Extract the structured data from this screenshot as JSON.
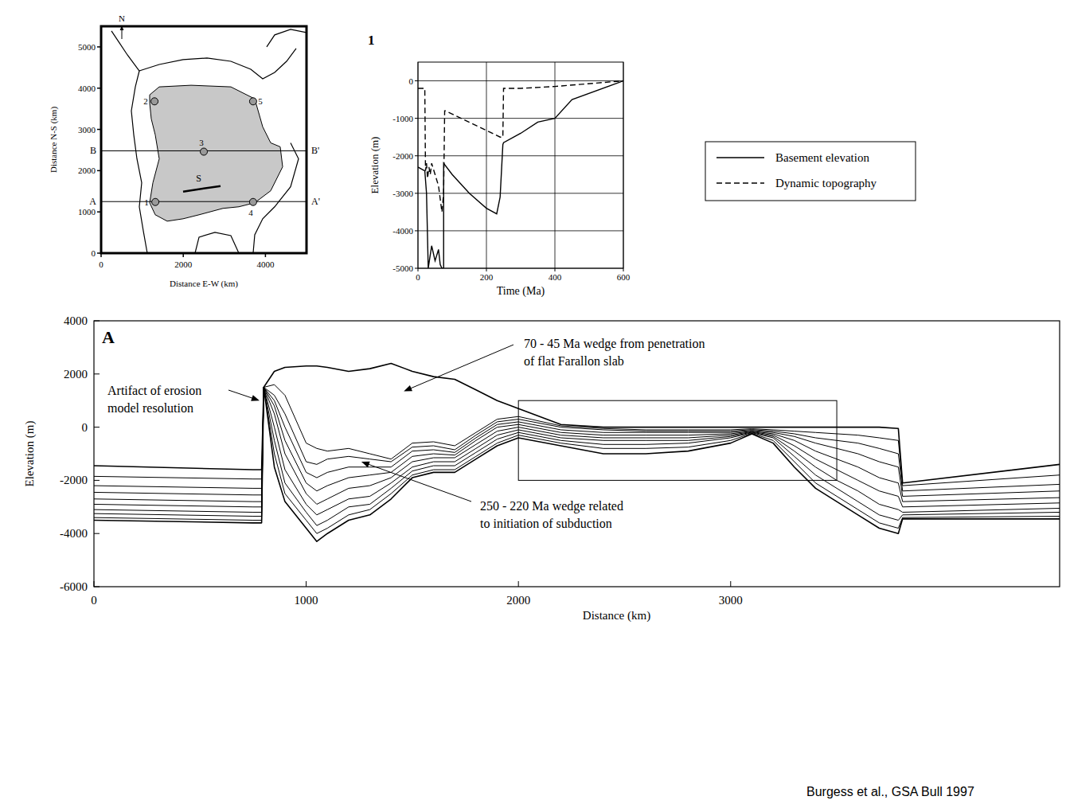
{
  "chart_data": [
    {
      "type": "map",
      "xlim": [
        0,
        5000
      ],
      "ylim": [
        0,
        5500
      ],
      "xticks": [
        0,
        2000,
        4000
      ],
      "yticks": [
        0,
        1000,
        2000,
        3000,
        4000,
        5000
      ],
      "xlabel": "Distance E-W (km)",
      "ylabel": "Distance N-S (km)",
      "north_label": "N",
      "region": {
        "x": [
          1182,
          1415,
          2190,
          3159,
          3740,
          3934,
          4128,
          4360,
          4419,
          4128,
          3740,
          3353,
          2965,
          2384,
          1996,
          1609,
          1318,
          1182,
          1260,
          1415,
          1318,
          1221,
          1182
        ],
        "y": [
          3837,
          4031,
          4070,
          4031,
          3740,
          3062,
          2674,
          2578,
          2093,
          1512,
          1221,
          1124,
          1085,
          930,
          833,
          775,
          930,
          1221,
          1705,
          2287,
          2868,
          3256,
          3643
        ]
      },
      "coastlines": [
        {
          "x": [
            1124,
            1027,
            930,
            988,
            872,
            795,
            736,
            833,
            930,
            640,
            446,
            252
          ],
          "y": [
            0,
            543,
            1124,
            1705,
            2287,
            2868,
            3450,
            4031,
            4419,
            4806,
            5097,
            5388
          ]
        },
        {
          "x": [
            930,
            1415,
            1996,
            2578,
            3159,
            3643,
            3934,
            4225,
            4515,
            4748
          ],
          "y": [
            4419,
            4574,
            4690,
            4729,
            4651,
            4457,
            4225,
            4380,
            4651,
            4961
          ]
        },
        {
          "x": [
            4031,
            4225,
            4612,
            5000
          ],
          "y": [
            5000,
            5291,
            5426,
            5349
          ]
        },
        {
          "x": [
            4612,
            4806,
            4612,
            4225,
            3934,
            3740,
            3701
          ],
          "y": [
            2674,
            2287,
            1609,
            1124,
            833,
            446,
            0
          ]
        },
        {
          "x": [
            2287,
            2384,
            2771,
            3159,
            3353
          ],
          "y": [
            0,
            388,
            504,
            426,
            0
          ]
        }
      ],
      "sections": [
        {
          "start_label": "A",
          "end_label": "A'",
          "y": 1250
        },
        {
          "start_label": "B",
          "end_label": "B'",
          "y": 2480
        }
      ],
      "points": [
        {
          "label": "1",
          "x": 1320,
          "y": 1240
        },
        {
          "label": "2",
          "x": 1300,
          "y": 3680
        },
        {
          "label": "3",
          "x": 2500,
          "y": 2460
        },
        {
          "label": "4",
          "x": 3700,
          "y": 1240
        },
        {
          "label": "5",
          "x": 3700,
          "y": 3680
        }
      ],
      "segment": {
        "label": "S",
        "x": [
          1996,
          2907
        ],
        "y": [
          1492,
          1628
        ]
      }
    },
    {
      "type": "line",
      "title": "1",
      "xlabel": "Time (Ma)",
      "ylabel": "Elevation (m)",
      "xlim": [
        0,
        600
      ],
      "ylim": [
        -5000,
        500
      ],
      "xticks": [
        0,
        200,
        400,
        600
      ],
      "yticks": [
        -5000,
        -4000,
        -3000,
        -2000,
        -1000,
        0
      ],
      "grid": true,
      "legend": "right",
      "series": [
        {
          "name": "Basement elevation",
          "color": "#000000",
          "line_style": "solid",
          "x": [
            0,
            20,
            25,
            30,
            35,
            40,
            50,
            60,
            65,
            70,
            75,
            75,
            100,
            150,
            200,
            230,
            240,
            248,
            250,
            300,
            350,
            400,
            450,
            600
          ],
          "values": [
            -2300,
            -2400,
            -3000,
            -5000,
            -4700,
            -4400,
            -4800,
            -4500,
            -4900,
            -5000,
            -5000,
            -2200,
            -2500,
            -3000,
            -3400,
            -3550,
            -3100,
            -1700,
            -1650,
            -1400,
            -1100,
            -1000,
            -500,
            0
          ]
        },
        {
          "name": "Dynamic topography",
          "color": "#000000",
          "line_style": "dashed",
          "x": [
            0,
            20,
            22,
            25,
            28,
            32,
            36,
            40,
            50,
            60,
            70,
            75,
            78,
            80,
            240,
            248,
            250,
            300,
            400,
            600
          ],
          "values": [
            -200,
            -200,
            -2400,
            -2200,
            -2600,
            -2300,
            -2500,
            -2200,
            -2500,
            -2800,
            -3500,
            -3000,
            -800,
            -800,
            -1500,
            -1500,
            -200,
            -200,
            -150,
            0
          ]
        }
      ]
    },
    {
      "type": "section",
      "panel": "A",
      "xlabel": "Distance (km)",
      "ylabel": "Elevation (m)",
      "xlim": [
        0,
        4550
      ],
      "ylim": [
        -6000,
        4000
      ],
      "xticks": [
        0,
        1000,
        2000,
        3000
      ],
      "yticks": [
        -6000,
        -4000,
        -2000,
        0,
        2000,
        4000
      ],
      "x": [
        0,
        750,
        790,
        800,
        850,
        900,
        1000,
        1050,
        1100,
        1200,
        1300,
        1400,
        1500,
        1600,
        1700,
        1800,
        1900,
        2000,
        2200,
        2400,
        2600,
        2800,
        3000,
        3100,
        3200,
        3300,
        3400,
        3500,
        3600,
        3700,
        3790,
        3810,
        4550
      ],
      "series": [
        {
          "color": "#000000",
          "values": [
            -3500,
            -3600,
            -3600,
            1500,
            -1500,
            -2800,
            -3800,
            -4300,
            -4000,
            -3500,
            -3300,
            -2700,
            -1900,
            -1700,
            -1700,
            -1200,
            -700,
            -400,
            -700,
            -1000,
            -1000,
            -900,
            -600,
            -250,
            -600,
            -1500,
            -2300,
            -2800,
            -3300,
            -3800,
            -4000,
            -3450,
            -3450
          ]
        },
        {
          "color": "#000000",
          "values": [
            -3400,
            -3500,
            -3500,
            1500,
            -1000,
            -2500,
            -3500,
            -4000,
            -3800,
            -3300,
            -3100,
            -2500,
            -1800,
            -1600,
            -1600,
            -1100,
            -600,
            -300,
            -600,
            -800,
            -800,
            -750,
            -500,
            -230,
            -500,
            -1300,
            -2100,
            -2600,
            -3100,
            -3600,
            -3800,
            -3400,
            -3350
          ]
        },
        {
          "color": "#000000",
          "values": [
            -3250,
            -3350,
            -3350,
            1500,
            -500,
            -2100,
            -3200,
            -3700,
            -3500,
            -3000,
            -2900,
            -2300,
            -1650,
            -1450,
            -1450,
            -950,
            -450,
            -200,
            -500,
            -650,
            -650,
            -600,
            -400,
            -210,
            -400,
            -1100,
            -1800,
            -2300,
            -2800,
            -3300,
            -3500,
            -3300,
            -3200
          ]
        },
        {
          "color": "#000000",
          "values": [
            -3100,
            -3200,
            -3200,
            1500,
            0,
            -1600,
            -2900,
            -3300,
            -3100,
            -2700,
            -2600,
            -2100,
            -1500,
            -1300,
            -1300,
            -800,
            -300,
            -100,
            -400,
            -500,
            -500,
            -500,
            -350,
            -190,
            -350,
            -900,
            -1500,
            -2000,
            -2400,
            -2900,
            -3100,
            -3200,
            -3050
          ]
        },
        {
          "color": "#000000",
          "values": [
            -2900,
            -3000,
            -3000,
            1500,
            500,
            -1000,
            -2500,
            -2900,
            -2700,
            -2300,
            -2200,
            -1900,
            -1300,
            -1150,
            -1150,
            -650,
            -150,
            0,
            -300,
            -400,
            -400,
            -400,
            -300,
            -170,
            -300,
            -700,
            -1200,
            -1600,
            -2000,
            -2400,
            -2600,
            -3000,
            -2850
          ]
        },
        {
          "color": "#000000",
          "values": [
            -2700,
            -2800,
            -2800,
            1500,
            800,
            -500,
            -2100,
            -2400,
            -2200,
            -1900,
            -1800,
            -1700,
            -1100,
            -1000,
            -1050,
            -500,
            0,
            100,
            -200,
            -300,
            -300,
            -300,
            -250,
            -150,
            -250,
            -500,
            -900,
            -1200,
            -1500,
            -1900,
            -2100,
            -2800,
            -2650
          ]
        },
        {
          "color": "#000000",
          "values": [
            -2450,
            -2550,
            -2550,
            1500,
            1000,
            0,
            -1700,
            -1900,
            -1700,
            -1500,
            -1500,
            -1500,
            -900,
            -850,
            -950,
            -400,
            100,
            200,
            -100,
            -200,
            -200,
            -200,
            -200,
            -120,
            -200,
            -350,
            -600,
            -800,
            -1000,
            -1300,
            -1500,
            -2600,
            -2400
          ]
        },
        {
          "color": "#000000",
          "values": [
            -2200,
            -2300,
            -2300,
            1500,
            1200,
            500,
            -1300,
            -1400,
            -1200,
            -1100,
            -1200,
            -1300,
            -750,
            -700,
            -850,
            -300,
            200,
            300,
            0,
            -100,
            -150,
            -150,
            -150,
            -90,
            -150,
            -250,
            -400,
            -500,
            -600,
            -800,
            -1000,
            -2400,
            -2150
          ]
        },
        {
          "color": "#000000",
          "values": [
            -1850,
            -1950,
            -1950,
            1500,
            1600,
            1200,
            -600,
            -800,
            -900,
            -800,
            -1000,
            -1200,
            -600,
            -550,
            -700,
            -200,
            300,
            400,
            50,
            -50,
            -100,
            -100,
            -100,
            -60,
            -100,
            -150,
            -200,
            -250,
            -300,
            -400,
            -500,
            -2200,
            -1800
          ]
        },
        {
          "color": "#000000",
          "values": [
            -1450,
            -1600,
            -1600,
            1500,
            2100,
            2250,
            2300,
            2300,
            2250,
            2100,
            2200,
            2400,
            2100,
            1900,
            1800,
            1400,
            1000,
            700,
            100,
            0,
            0,
            0,
            0,
            0,
            0,
            0,
            0,
            0,
            0,
            0,
            -50,
            -2100,
            -1400
          ]
        }
      ],
      "box": {
        "x": [
          2000,
          3500
        ],
        "y": [
          -2000,
          1000
        ]
      },
      "annotations": [
        {
          "text": "Artifact of erosion model resolution",
          "x": 780,
          "y": 1000
        },
        {
          "text": "70 - 45 Ma wedge from penetration of flat Farallon slab",
          "x": 1460,
          "y": 1350
        },
        {
          "text": "250 - 220 Ma wedge related to initiation of subduction",
          "x": 1260,
          "y": -1300
        }
      ]
    }
  ],
  "source": "Burgess et al., GSA Bull 1997"
}
